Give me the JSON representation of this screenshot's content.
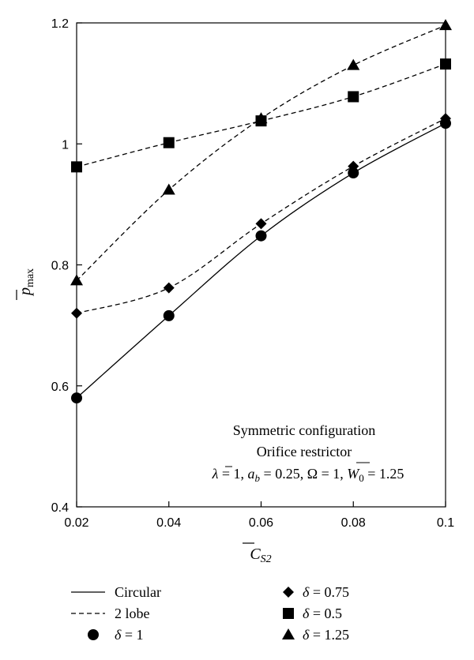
{
  "chart_data": {
    "type": "line",
    "x": [
      0.02,
      0.04,
      0.06,
      0.08,
      0.1
    ],
    "xlim": [
      0.02,
      0.1
    ],
    "ylim": [
      0.4,
      1.2
    ],
    "x_ticks": [
      "0.02",
      "0.04",
      "0.06",
      "0.08",
      "0.1"
    ],
    "y_ticks": [
      "0.4",
      "0.6",
      "0.8",
      "1",
      "1.2"
    ],
    "x_tick_values": [
      0.02,
      0.04,
      0.06,
      0.08,
      0.1
    ],
    "y_tick_values": [
      0.4,
      0.6,
      0.8,
      1.0,
      1.2
    ],
    "xlabel": {
      "main": "C",
      "sub": "S2"
    },
    "ylabel": {
      "main": "p",
      "sub": "max"
    },
    "annotation": {
      "line1": "Symmetric configuration",
      "line2": "Orifice restrictor",
      "line3": {
        "lambda": "λ",
        "eq1": " = 1, ",
        "a": "a",
        "a_sub": "b",
        "eq2": " = 0.25, Ω = 1, ",
        "w": "W",
        "w_sub": "0",
        "eq3": " = 1.25"
      }
    },
    "series": [
      {
        "name": "δ = 1",
        "line": "solid",
        "marker": "circle",
        "values": [
          0.58,
          0.716,
          0.848,
          0.952,
          1.034
        ]
      },
      {
        "name": "δ = 0.75",
        "line": "dashed",
        "marker": "diamond",
        "values": [
          0.72,
          0.762,
          0.868,
          0.963,
          1.042
        ]
      },
      {
        "name": "δ = 0.5",
        "line": "dashed",
        "marker": "square",
        "values": [
          0.962,
          1.002,
          1.038,
          1.078,
          1.132
        ]
      },
      {
        "name": "δ = 1.25",
        "line": "dashed",
        "marker": "triangle",
        "values": [
          0.774,
          0.924,
          1.042,
          1.13,
          1.196
        ]
      }
    ],
    "legend": {
      "placement": "bottom",
      "items": [
        {
          "kind": "line",
          "style": "solid",
          "label": "Circular"
        },
        {
          "kind": "line",
          "style": "dashed",
          "label": "2 lobe"
        },
        {
          "kind": "marker",
          "marker": "circle",
          "sym": "δ",
          "label": " = 1"
        },
        {
          "kind": "marker",
          "marker": "diamond",
          "sym": "δ",
          "label": " = 0.75"
        },
        {
          "kind": "marker",
          "marker": "square",
          "sym": "δ",
          "label": " = 0.5"
        },
        {
          "kind": "marker",
          "marker": "triangle",
          "sym": "δ",
          "label": " = 1.25"
        }
      ]
    },
    "grid": false
  }
}
